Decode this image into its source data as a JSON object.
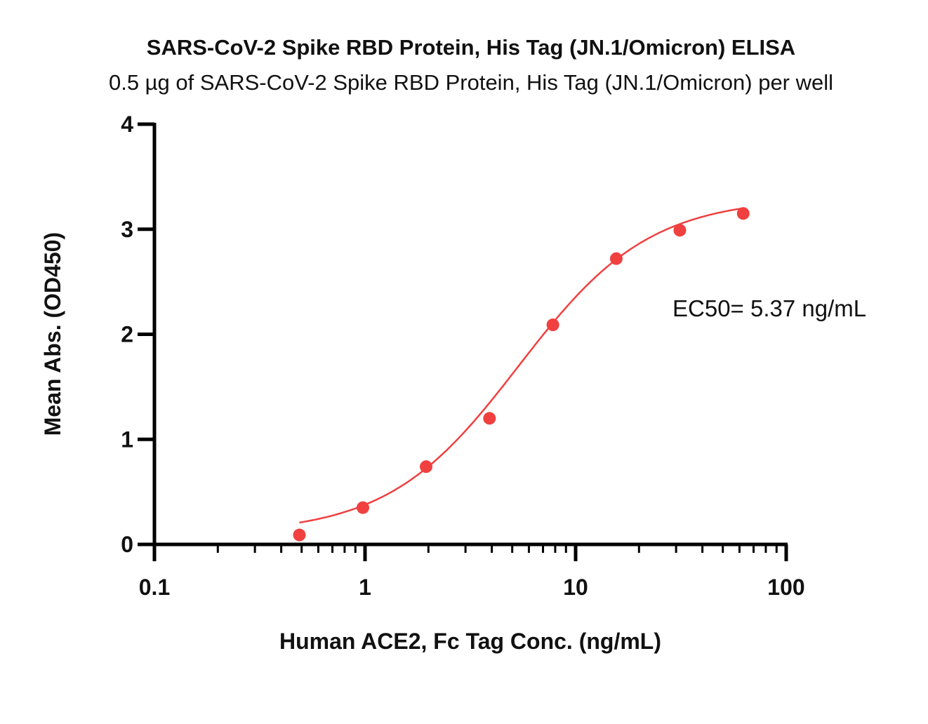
{
  "chart_data": {
    "type": "scatter",
    "title": "SARS-CoV-2 Spike RBD Protein, His Tag (JN.1/Omicron) ELISA",
    "subtitle": "0.5 µg of SARS-CoV-2 Spike RBD Protein, His Tag (JN.1/Omicron) per well",
    "xlabel": "Human ACE2, Fc Tag Conc. (ng/mL)",
    "ylabel": "Mean Abs. (OD450)",
    "xscale": "log",
    "xlim": [
      0.1,
      100
    ],
    "ylim": [
      0,
      4
    ],
    "xticks": [
      "0.1",
      "1",
      "10",
      "100"
    ],
    "yticks": [
      "0",
      "1",
      "2",
      "3",
      "4"
    ],
    "grid": false,
    "annotation": "EC50= 5.37 ng/mL",
    "series": [
      {
        "name": "Human ACE2, Fc Tag",
        "color": "#f04040",
        "x": [
          0.488,
          0.977,
          1.95,
          3.9,
          7.8,
          15.6,
          31.25,
          62.5
        ],
        "y": [
          0.09,
          0.35,
          0.74,
          1.2,
          2.09,
          2.72,
          2.99,
          3.15
        ],
        "fit": {
          "model": "4PL",
          "bottom": 0.1,
          "top": 3.3,
          "ec50": 5.37,
          "hill": 1.4
        }
      }
    ]
  }
}
